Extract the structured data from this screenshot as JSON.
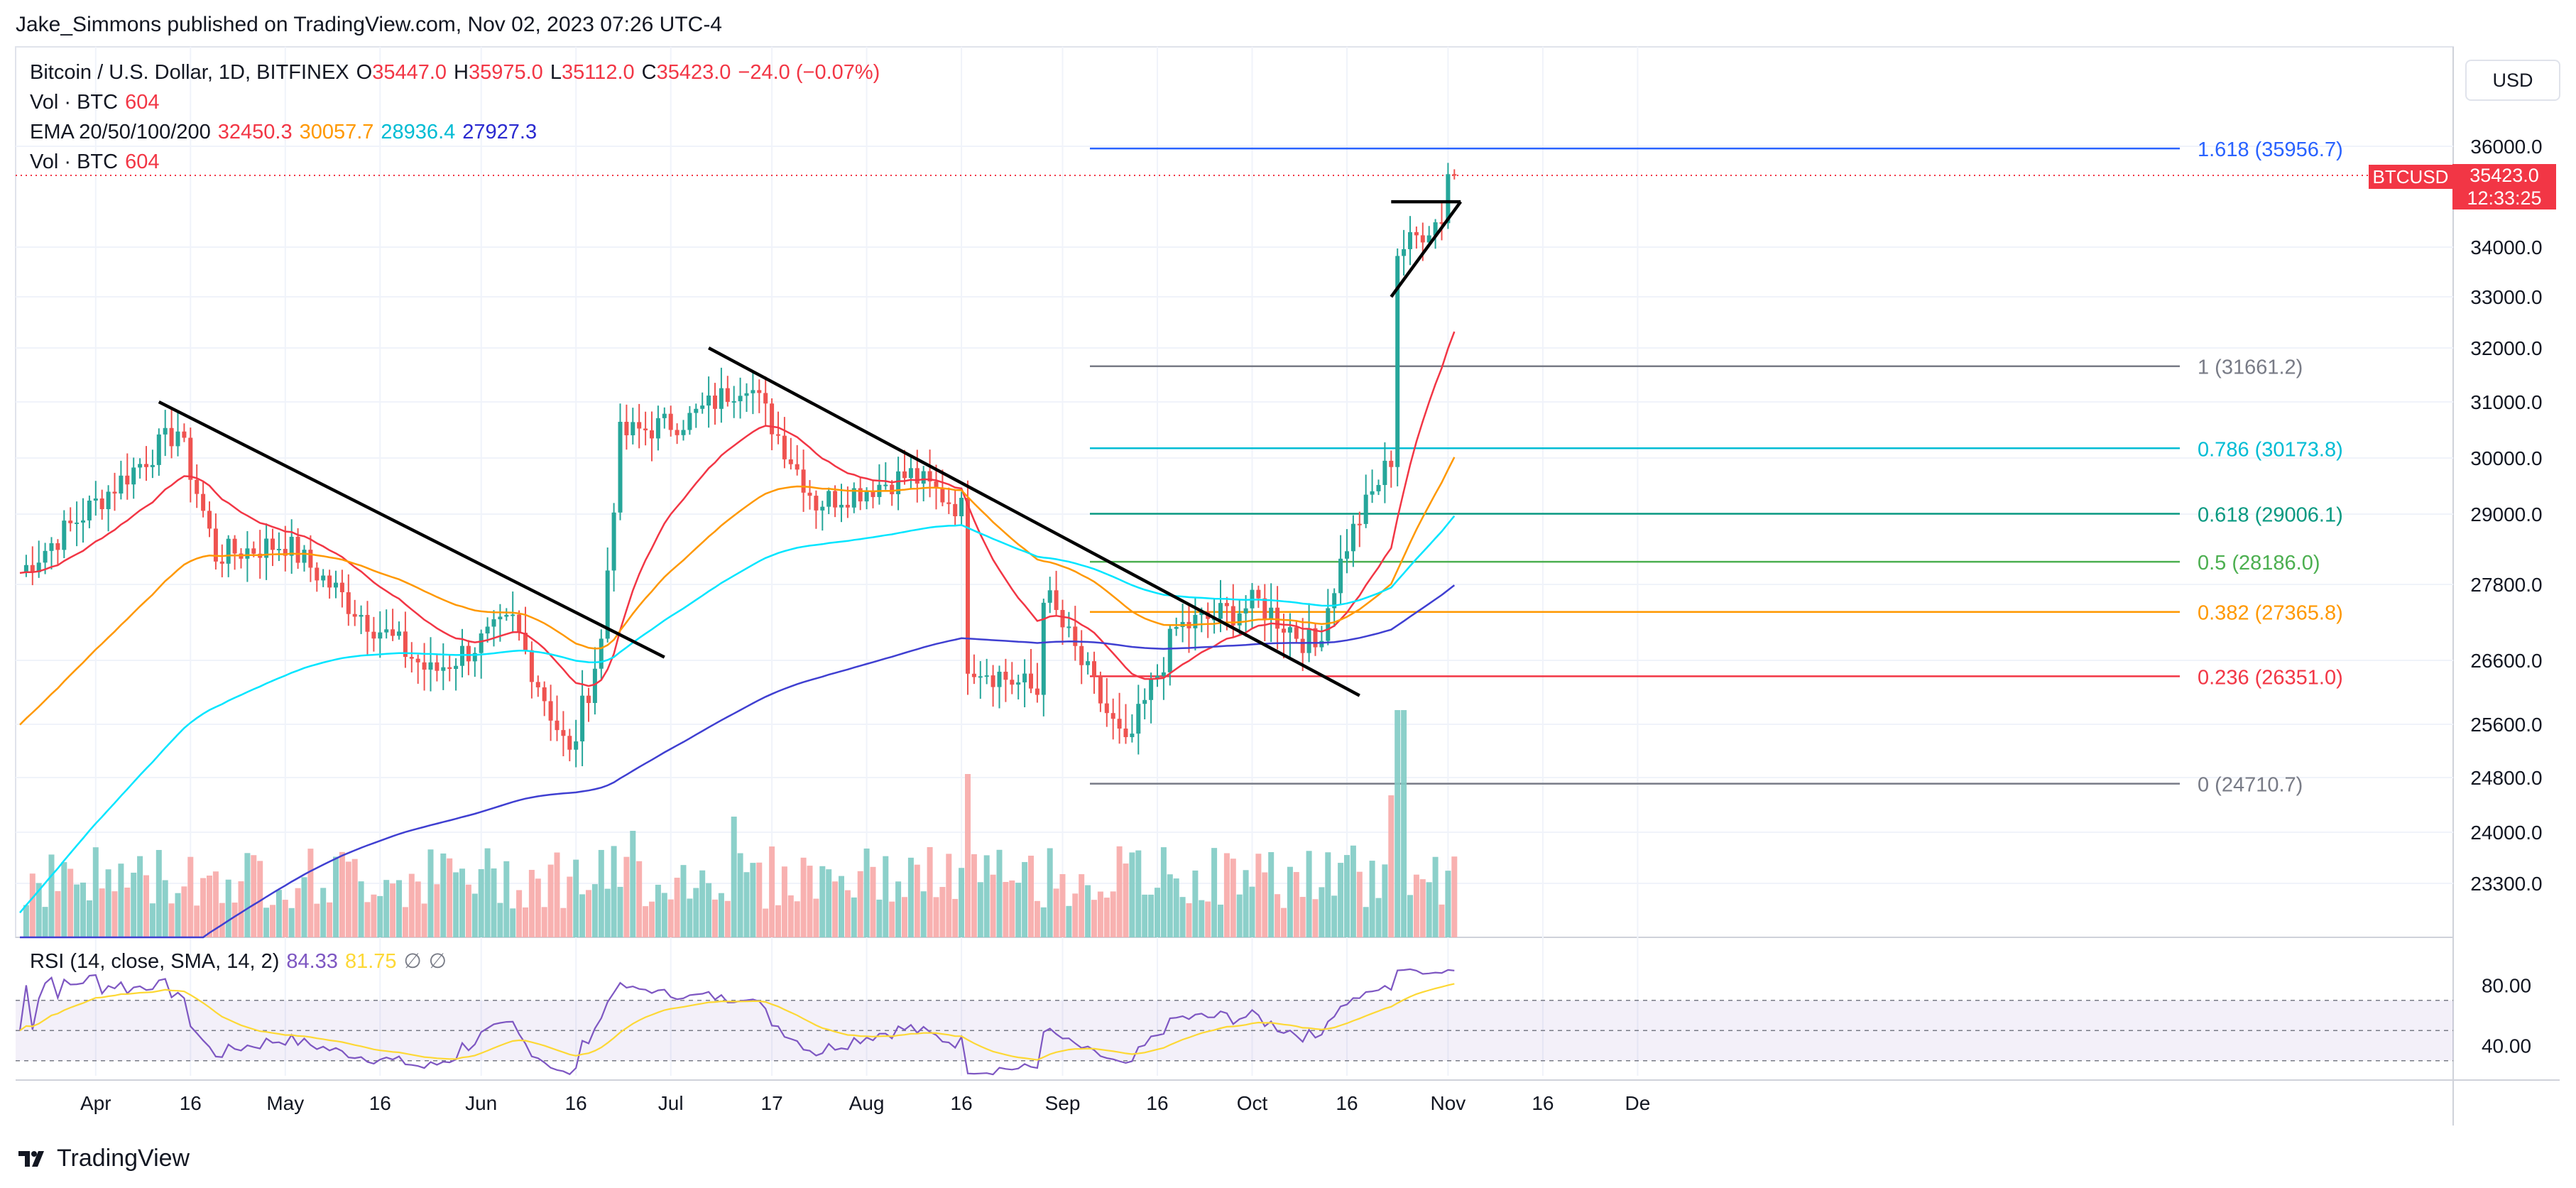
{
  "caption": "Jake_Simmons published on TradingView.com, Nov 02, 2023 07:26 UTC-4",
  "legend": {
    "symbol": "Bitcoin / U.S. Dollar, 1D, BITFINEX",
    "o_label": "O",
    "o": "35447.0",
    "h_label": "H",
    "h": "35975.0",
    "l_label": "L",
    "l": "35112.0",
    "c_label": "C",
    "c": "35423.0",
    "change": "−24.0 (−0.07%)",
    "vol_label": "Vol · BTC",
    "vol": "604",
    "ema_label": "EMA 20/50/100/200",
    "ema20": "32450.3",
    "ema50": "30057.7",
    "ema100": "28936.4",
    "ema200": "27927.3",
    "vol2_label": "Vol · BTC",
    "vol2": "604"
  },
  "rsi_legend": {
    "label": "RSI (14, close, SMA, 14, 2)",
    "rsi": "84.33",
    "sma": "81.75",
    "g1": "∅",
    "g2": "∅"
  },
  "currency_button": "USD",
  "price_badge": {
    "symbol": "BTCUSD",
    "price": "35423.0",
    "countdown": "12:33:25"
  },
  "brand": "TradingView",
  "colors": {
    "up": "#26a69a",
    "down": "#ef5350",
    "ema20": "#f23645",
    "ema50": "#ff9800",
    "ema100": "#00e5ff",
    "ema200": "#3f3fd1",
    "rsi": "#7e57c2",
    "rsi_sma": "#fdd835"
  },
  "chart_data": {
    "type": "candlestick",
    "title": "Bitcoin / U.S. Dollar, 1D, BITFINEX",
    "y_axis_ticks": [
      "36000.0",
      "34000.0",
      "33000.0",
      "32000.0",
      "31000.0",
      "30000.0",
      "29000.0",
      "27800.0",
      "26600.0",
      "25600.0",
      "24800.0",
      "24000.0",
      "23300.0"
    ],
    "rsi_axis_ticks": [
      "80.00",
      "40.00"
    ],
    "x_axis_ticks": [
      "Apr",
      "16",
      "May",
      "16",
      "Jun",
      "16",
      "Jul",
      "17",
      "Aug",
      "16",
      "Sep",
      "16",
      "Oct",
      "16",
      "Nov",
      "16",
      "De"
    ],
    "fibonacci": [
      {
        "label": "1.618 (35956.7)",
        "value": 35956.7,
        "color": "#2962ff"
      },
      {
        "label": "1 (31661.2)",
        "value": 31661.2,
        "color": "#787b86"
      },
      {
        "label": "0.786 (30173.8)",
        "value": 30173.8,
        "color": "#00bcd4"
      },
      {
        "label": "0.618 (29006.1)",
        "value": 29006.1,
        "color": "#089981"
      },
      {
        "label": "0.5 (28186.0)",
        "value": 28186.0,
        "color": "#4caf50"
      },
      {
        "label": "0.382 (27365.8)",
        "value": 27365.8,
        "color": "#ff9800"
      },
      {
        "label": "0.236 (26351.0)",
        "value": 26351.0,
        "color": "#f23645"
      },
      {
        "label": "0 (24710.7)",
        "value": 24710.7,
        "color": "#787b86"
      }
    ],
    "price_anchors": [
      {
        "date": "2023-03-20",
        "close": 28000
      },
      {
        "date": "2023-04-14",
        "close": 30500
      },
      {
        "date": "2023-04-20",
        "close": 28300
      },
      {
        "date": "2023-05-01",
        "close": 28500
      },
      {
        "date": "2023-05-10",
        "close": 27600
      },
      {
        "date": "2023-05-24",
        "close": 26400
      },
      {
        "date": "2023-06-06",
        "close": 27200
      },
      {
        "date": "2023-06-15",
        "close": 25100
      },
      {
        "date": "2023-06-20",
        "close": 26900
      },
      {
        "date": "2023-06-23",
        "close": 30400
      },
      {
        "date": "2023-07-04",
        "close": 30700
      },
      {
        "date": "2023-07-13",
        "close": 31400
      },
      {
        "date": "2023-07-24",
        "close": 29200
      },
      {
        "date": "2023-08-08",
        "close": 29700
      },
      {
        "date": "2023-08-16",
        "close": 29100
      },
      {
        "date": "2023-08-17",
        "close": 26600
      },
      {
        "date": "2023-08-28",
        "close": 26100
      },
      {
        "date": "2023-08-29",
        "close": 27700
      },
      {
        "date": "2023-09-11",
        "close": 25200
      },
      {
        "date": "2023-09-19",
        "close": 27100
      },
      {
        "date": "2023-10-02",
        "close": 27500
      },
      {
        "date": "2023-10-11",
        "close": 26800
      },
      {
        "date": "2023-10-16",
        "close": 28500
      },
      {
        "date": "2023-10-23",
        "close": 30000
      },
      {
        "date": "2023-10-24",
        "close": 33900
      },
      {
        "date": "2023-10-31",
        "close": 34600
      },
      {
        "date": "2023-11-01",
        "close": 35447
      },
      {
        "date": "2023-11-02",
        "close": 35423
      }
    ],
    "ema_last": {
      "ema20": 32450.3,
      "ema50": 30057.7,
      "ema100": 28936.4,
      "ema200": 27927.3
    },
    "rsi_last": 84.33,
    "rsi_sma_last": 81.75
  }
}
